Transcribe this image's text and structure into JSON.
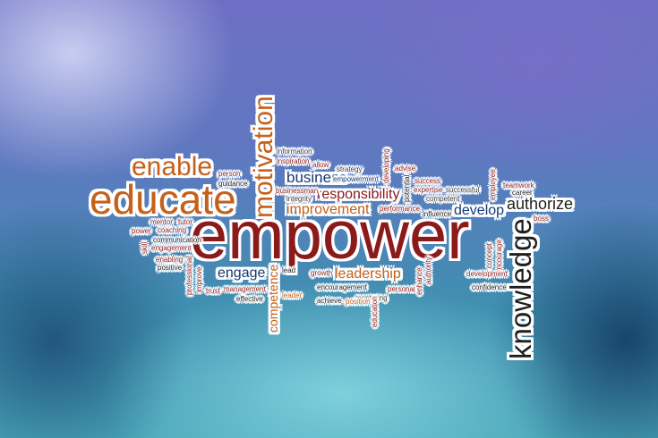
{
  "colors": {
    "main_word": "#8b1a1a",
    "accent_orange": "#c5611b",
    "text_dark": "#1e1e1e",
    "text_blue": "#173a75",
    "outline": "#ffffff"
  },
  "words": {
    "empower": "empower",
    "educate": "educate",
    "enable": "enable",
    "motivation": "motivation",
    "knowledge": "knowledge",
    "authorize": "authorize",
    "develop": "develop",
    "business": "business",
    "responsibility": "responsibility",
    "improvement": "improvement",
    "engage": "engage",
    "leadership": "leadership",
    "competence": "competence",
    "information": "information",
    "inspiration": "inspiration",
    "allow": "allow",
    "strategy": "strategy",
    "empowerment": "empowerment",
    "developing": "developing",
    "advise": "advise",
    "success": "success",
    "expertise": "expertise",
    "successful": "successful",
    "competent": "competent",
    "potential": "potential",
    "performance": "performance",
    "influence": "influence",
    "employee": "employee",
    "teamwork": "teamwork",
    "career": "career",
    "boss": "boss",
    "person": "person",
    "guidance": "guidance",
    "businessman": "businessman",
    "integrity": "integrity",
    "mentor": "mentor",
    "tutor": "tutor",
    "power": "power",
    "coaching": "coaching",
    "communication": "communication",
    "skill": "skill",
    "engagement": "engagement",
    "enabling": "enabling",
    "positive": "positive",
    "professional": "professional",
    "improve": "improve",
    "trust": "trust",
    "management": "management",
    "effective": "effective",
    "lead": "lead",
    "leader": "leader",
    "growth": "growth",
    "encouragement": "encouragement",
    "mentoring": "mentoring",
    "personal": "personal",
    "achieve": "achieve",
    "position": "position",
    "education": "education",
    "enhance": "enhance",
    "authority": "authority",
    "concept": "concept",
    "encourage": "encourage",
    "development": "development",
    "confidence": "confidence"
  }
}
